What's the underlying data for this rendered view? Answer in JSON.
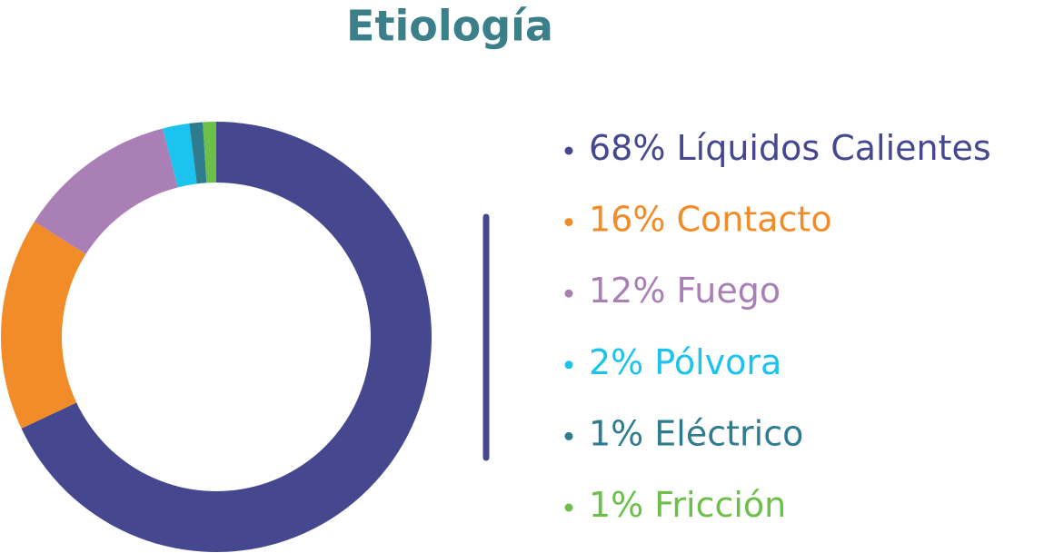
{
  "chart_data": {
    "type": "donut",
    "title": "Etiología",
    "categories": [
      "Líquidos Calientes",
      "Contacto",
      "Fuego",
      "Pólvora",
      "Eléctrico",
      "Fricción"
    ],
    "values": [
      68,
      16,
      12,
      2,
      1,
      1
    ],
    "value_labels": [
      "68%",
      "16%",
      "12%",
      "2%",
      "1%",
      "1%"
    ],
    "colors": [
      "#45488f",
      "#f28c28",
      "#a97fb5",
      "#1cc3ef",
      "#2f7c8f",
      "#6cc04a"
    ],
    "title_color": "#3a7f8a"
  }
}
